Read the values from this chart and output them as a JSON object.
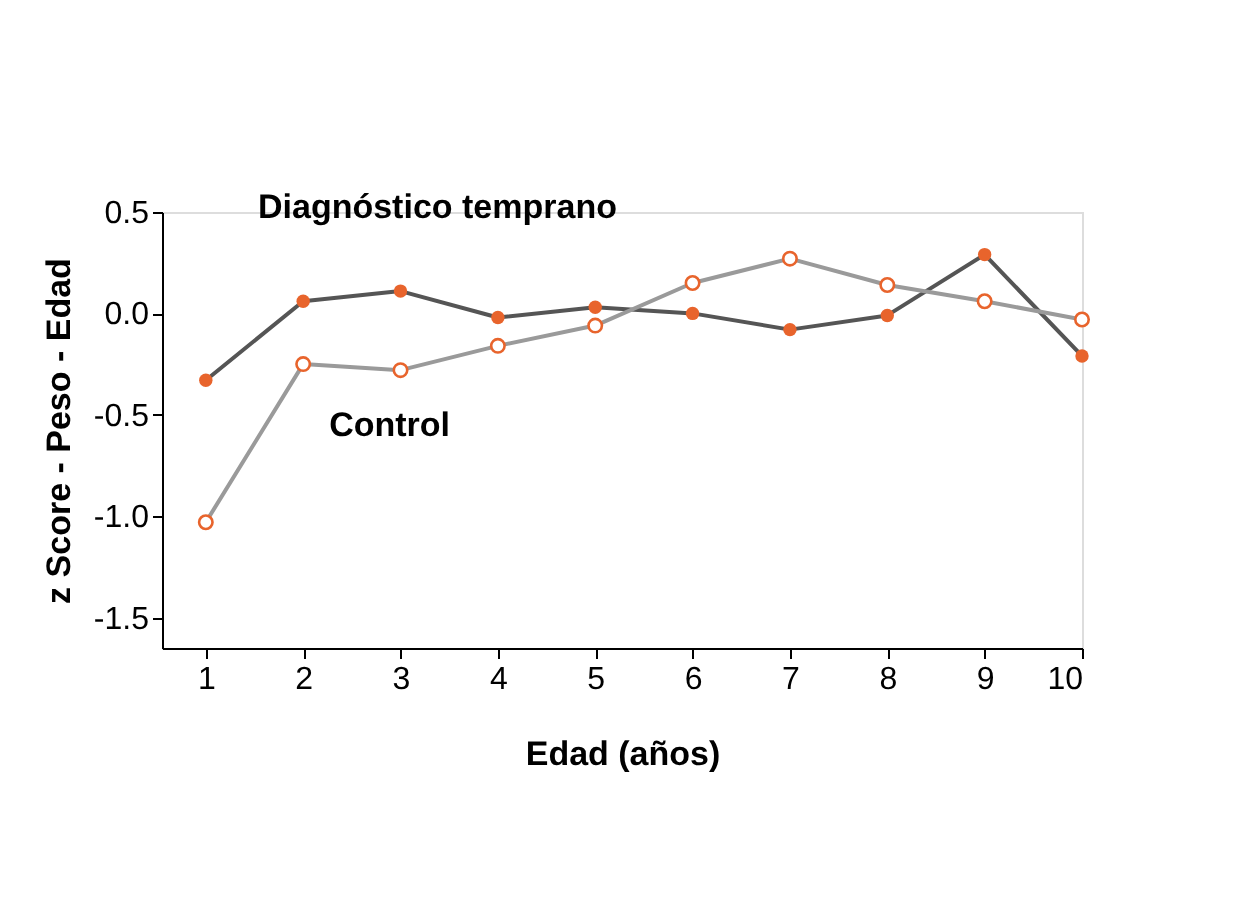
{
  "chart_data": {
    "type": "line",
    "xlabel": "Edad (años)",
    "ylabel": "z Score - Peso - Edad",
    "x": [
      1,
      2,
      3,
      4,
      5,
      6,
      7,
      8,
      9,
      10
    ],
    "series": [
      {
        "name": "Diagnóstico temprano",
        "color": "#555555",
        "values": [
          -0.33,
          0.06,
          0.11,
          -0.02,
          0.03,
          0.0,
          -0.08,
          -0.01,
          0.29,
          -0.21
        ]
      },
      {
        "name": "Control",
        "color": "#9a9a9a",
        "values": [
          -1.03,
          -0.25,
          -0.28,
          -0.16,
          -0.06,
          0.15,
          0.27,
          0.14,
          0.06,
          -0.03
        ]
      }
    ],
    "xlim": [
      0.55,
      10
    ],
    "xticks": [
      1,
      2,
      3,
      4,
      5,
      6,
      7,
      8,
      9,
      10
    ],
    "ylim": [
      -1.65,
      0.5
    ],
    "yticks": [
      {
        "value": 0.5,
        "label": "0.5"
      },
      {
        "value": 0.0,
        "label": "0.0"
      },
      {
        "value": -0.5,
        "label": "-0.5"
      },
      {
        "value": -1.0,
        "label": "-1.0"
      },
      {
        "value": -1.5,
        "label": "-1.5"
      }
    ],
    "marker": "circle",
    "line_style": "solid",
    "grid": false
  }
}
